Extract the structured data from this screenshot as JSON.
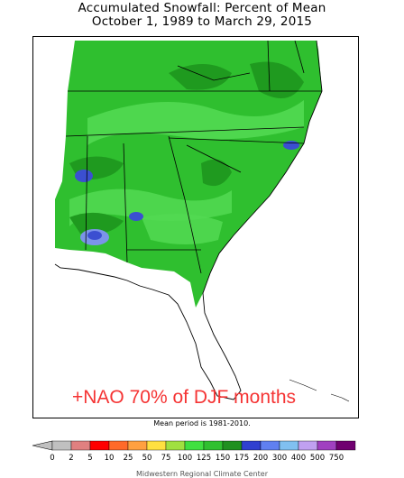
{
  "header": {
    "title_line1": "Accumulated Snowfall: Percent of Mean",
    "title_line2": "October 1, 1989 to March 29, 2015"
  },
  "annotation": {
    "text": "+NAO 70% of DJF months",
    "color": "#f53434"
  },
  "footnote": "Mean period is 1981-2010.",
  "credit": "Midwestern Regional Climate Center",
  "colors": {
    "base_green": "#2fbf2f",
    "light_green": "#52d952",
    "dark_green": "#1f9a1f",
    "blue": "#3b4fd1",
    "light_blue": "#7b94e8"
  },
  "legend": {
    "labels": [
      "0",
      "2",
      "5",
      "10",
      "25",
      "50",
      "75",
      "100",
      "125",
      "150",
      "175",
      "200",
      "300",
      "400",
      "500",
      "750"
    ],
    "swatch_colors": [
      "#c0c0c0",
      "#e08080",
      "#ff0000",
      "#ff6a2a",
      "#ffa040",
      "#ffe040",
      "#a0e040",
      "#40e040",
      "#30c030",
      "#209020",
      "#3040d0",
      "#6080f0",
      "#80c0f0",
      "#c0a0f0",
      "#a040c0",
      "#700070"
    ]
  }
}
